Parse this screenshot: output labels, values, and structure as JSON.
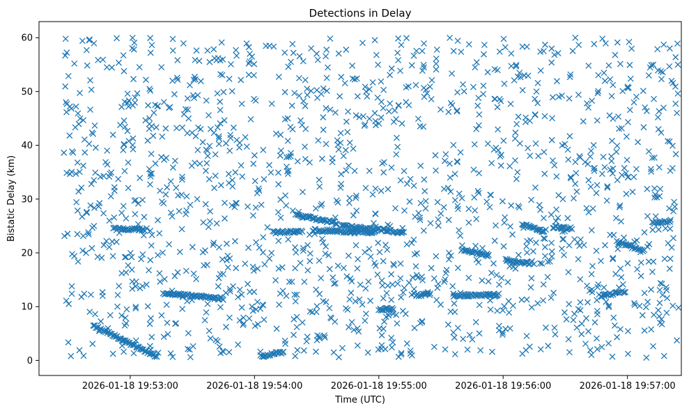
{
  "chart_data": {
    "type": "scatter",
    "title": "Detections in Delay",
    "xlabel": "Time (UTC)",
    "ylabel": "Bistatic Delay (km)",
    "x_tick_labels": [
      "2026-01-18 19:53:00",
      "2026-01-18 19:54:00",
      "2026-01-18 19:55:00",
      "2026-01-18 19:56:00",
      "2026-01-18 19:57:00"
    ],
    "y_tick_labels": [
      "0",
      "10",
      "20",
      "30",
      "40",
      "50",
      "60"
    ],
    "x_range": [
      "2026-01-18 19:52:16",
      "2026-01-18 19:57:26"
    ],
    "ylim": [
      -2.8,
      63
    ],
    "marker": "x",
    "grid": false,
    "color": "#1f77b4",
    "series": [
      {
        "description": "noise detections distributed uniformly",
        "x_start": "2026-01-18 19:52:28",
        "x_end": "2026-01-18 19:57:25",
        "y_range": [
          0.5,
          60
        ],
        "count": 1500
      },
      {
        "description": "tracks (continuous detection lines)",
        "tracks": [
          {
            "x": [
              "2026-01-18 19:52:42",
              "2026-01-18 19:53:13"
            ],
            "y": [
              6.5,
              0.7
            ]
          },
          {
            "x": [
              "2026-01-18 19:52:52",
              "2026-01-18 19:53:07"
            ],
            "y": [
              24.5,
              24.3
            ]
          },
          {
            "x": [
              "2026-01-18 19:53:16",
              "2026-01-18 19:53:45"
            ],
            "y": [
              12.5,
              11.5
            ]
          },
          {
            "x": [
              "2026-01-18 19:54:03",
              "2026-01-18 19:54:14"
            ],
            "y": [
              0.7,
              1.6
            ]
          },
          {
            "x": [
              "2026-01-18 19:54:09",
              "2026-01-18 19:54:23"
            ],
            "y": [
              23.8,
              24.0
            ]
          },
          {
            "x": [
              "2026-01-18 19:54:20",
              "2026-01-18 19:54:40"
            ],
            "y": [
              27.0,
              25.5
            ]
          },
          {
            "x": [
              "2026-01-18 19:54:28",
              "2026-01-18 19:54:58"
            ],
            "y": [
              24.2,
              23.8
            ]
          },
          {
            "x": [
              "2026-01-18 19:54:42",
              "2026-01-18 19:55:12"
            ],
            "y": [
              25.0,
              23.8
            ]
          },
          {
            "x": [
              "2026-01-18 19:55:00",
              "2026-01-18 19:55:07"
            ],
            "y": [
              9.5,
              9.6
            ]
          },
          {
            "x": [
              "2026-01-18 19:55:18",
              "2026-01-18 19:55:25"
            ],
            "y": [
              12.2,
              12.2
            ]
          },
          {
            "x": [
              "2026-01-18 19:55:36",
              "2026-01-18 19:55:58"
            ],
            "y": [
              12.0,
              12.2
            ]
          },
          {
            "x": [
              "2026-01-18 19:55:40",
              "2026-01-18 19:55:53"
            ],
            "y": [
              20.5,
              19.6
            ]
          },
          {
            "x": [
              "2026-01-18 19:56:01",
              "2026-01-18 19:56:13"
            ],
            "y": [
              18.7,
              18.0
            ]
          },
          {
            "x": [
              "2026-01-18 19:56:09",
              "2026-01-18 19:56:20"
            ],
            "y": [
              25.3,
              23.9
            ]
          },
          {
            "x": [
              "2026-01-18 19:56:24",
              "2026-01-18 19:56:33"
            ],
            "y": [
              24.8,
              24.5
            ]
          },
          {
            "x": [
              "2026-01-18 19:56:47",
              "2026-01-18 19:56:59"
            ],
            "y": [
              12.0,
              12.8
            ]
          },
          {
            "x": [
              "2026-01-18 19:56:55",
              "2026-01-18 19:57:08"
            ],
            "y": [
              22.0,
              20.3
            ]
          },
          {
            "x": [
              "2026-01-18 19:57:12",
              "2026-01-18 19:57:21"
            ],
            "y": [
              25.6,
              25.9
            ]
          }
        ]
      }
    ]
  }
}
